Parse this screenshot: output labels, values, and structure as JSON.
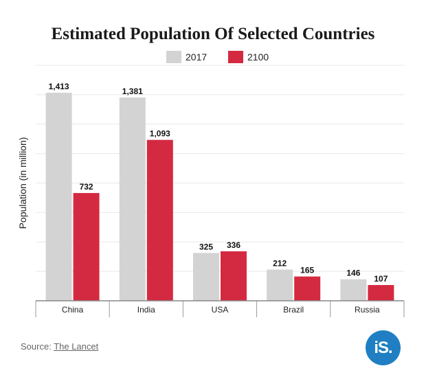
{
  "chart_data": {
    "type": "bar",
    "title": "Estimated Population Of Selected Countries",
    "ylabel": "Population (in million)",
    "xlabel": "",
    "categories": [
      "China",
      "India",
      "USA",
      "Brazil",
      "Russia"
    ],
    "series": [
      {
        "name": "2017",
        "values": [
          1413,
          1381,
          325,
          212,
          146
        ],
        "color": "#d3d3d3"
      },
      {
        "name": "2100",
        "values": [
          732,
          1093,
          336,
          165,
          107
        ],
        "color": "#d42a41"
      }
    ],
    "value_labels": [
      [
        "1,413",
        "1,381",
        "325",
        "212",
        "146"
      ],
      [
        "732",
        "1,093",
        "336",
        "165",
        "107"
      ]
    ],
    "ylim": [
      0,
      1600
    ],
    "grid": true,
    "legend_position": "top-center"
  },
  "source": {
    "prefix": "Source: ",
    "link_text": "The Lancet"
  },
  "logo": {
    "text": "iS.",
    "color": "#1f7fc2"
  }
}
